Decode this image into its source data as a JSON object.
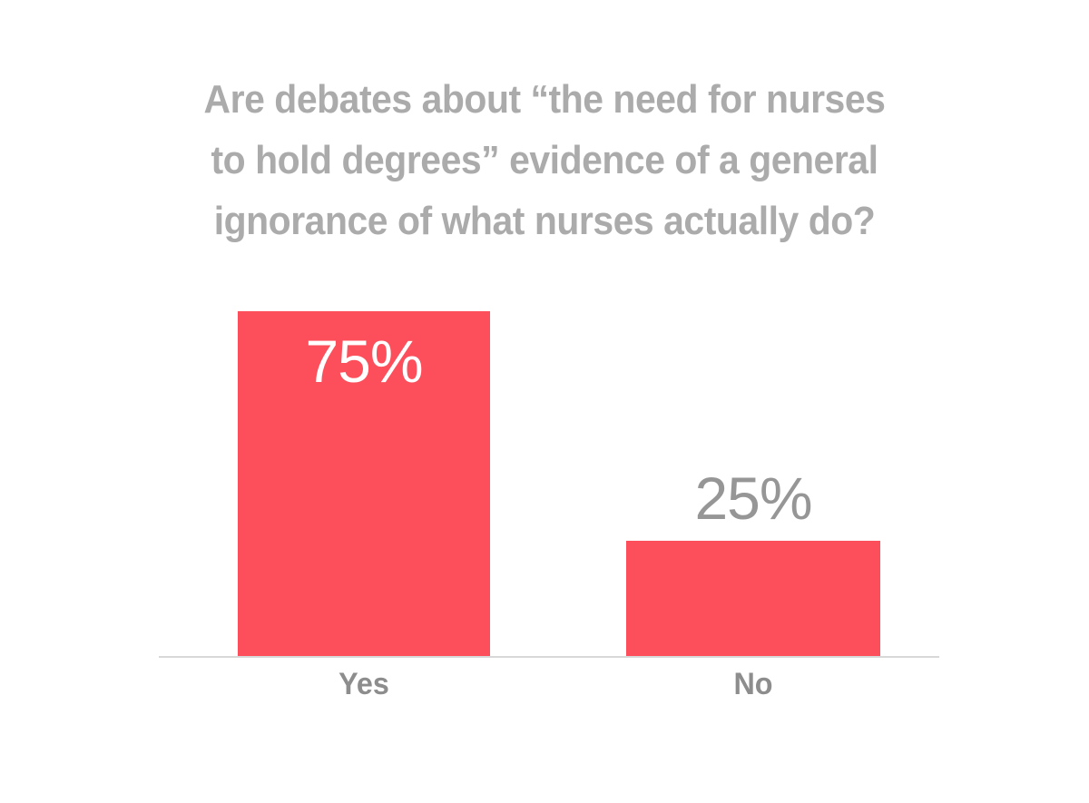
{
  "page": {
    "background": "#FFFFFF"
  },
  "chart_data": {
    "type": "bar",
    "title": "Are debates about “the need for nurses to hold degrees” evidence of a general ignorance of what nurses actually do?",
    "title_lines": [
      "Are debates about “the need for nurses",
      "to hold degrees” evidence of a general",
      "ignorance of what nurses actually do?"
    ],
    "categories": [
      "Yes",
      "No"
    ],
    "values": [
      75,
      25
    ],
    "bars": [
      {
        "category": "Yes",
        "value": 75,
        "label": "75%",
        "label_position": "inside",
        "label_color": "#FFFFFF"
      },
      {
        "category": "No",
        "value": 25,
        "label": "25%",
        "label_position": "above",
        "label_color": "#969696"
      }
    ],
    "bar_color": "#FC4F5B",
    "title_color": "#ABABAB",
    "category_label_color": "#8D8D8D",
    "axis_color": "#D8D8D8",
    "grid": false,
    "legend": false,
    "xlabel": "",
    "ylabel": ""
  }
}
